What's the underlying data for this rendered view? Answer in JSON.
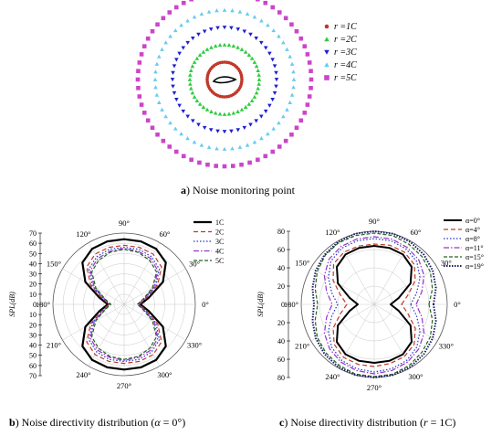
{
  "figure": {
    "caption_a": {
      "letter": "a",
      "rest": ") Noise monitoring point"
    },
    "caption_b": {
      "letter": "b",
      "rest": ") Noise directivity distribution (",
      "sym": "α",
      "tail": " = 0°)"
    },
    "caption_c": {
      "letter": "c",
      "rest": ") Noise directivity distribution (",
      "sym": "r",
      "tail": " = 1C)"
    }
  },
  "chart_data": [
    {
      "id": "a",
      "type": "scatter",
      "title": "",
      "description_markers": "concentric rings of monitoring points around an airfoil",
      "series": [
        {
          "name": "r =1C",
          "r": 1,
          "color": "#c0392b",
          "marker": "circle"
        },
        {
          "name": "r =2C",
          "r": 2,
          "color": "#2ecc40",
          "marker": "triangle-up"
        },
        {
          "name": "r =3C",
          "r": 3,
          "color": "#1f1fd0",
          "marker": "triangle-down"
        },
        {
          "name": "r =4C",
          "r": 4,
          "color": "#66ccee",
          "marker": "triangle-up"
        },
        {
          "name": "r =5C",
          "r": 5,
          "color": "#cc44cc",
          "marker": "square"
        }
      ],
      "legend": {
        "position": "right"
      }
    },
    {
      "id": "b",
      "type": "line",
      "subtype": "polar",
      "ylabel": "SPL(dB)",
      "rlim": [
        0,
        70
      ],
      "radial_ticks": [
        0,
        10,
        20,
        30,
        40,
        50,
        60,
        70
      ],
      "angle_ticks": [
        "0°",
        "30°",
        "60°",
        "90°",
        "120°",
        "150°",
        "180°",
        "210°",
        "240°",
        "270°",
        "300°",
        "330°"
      ],
      "angles_deg": [
        0,
        15,
        30,
        45,
        60,
        75,
        90,
        105,
        120,
        135,
        150,
        165,
        180,
        195,
        210,
        225,
        240,
        255,
        270,
        285,
        300,
        315,
        330,
        345
      ],
      "series": [
        {
          "name": "1C",
          "color": "#000000",
          "dash": "",
          "width": 2.2,
          "values": [
            16,
            25,
            44,
            58,
            63,
            64,
            64,
            64,
            63,
            58,
            44,
            25,
            16,
            25,
            44,
            58,
            63,
            64,
            64,
            64,
            63,
            58,
            44,
            25
          ]
        },
        {
          "name": "2C",
          "color": "#c0392b",
          "dash": "5,3",
          "width": 1.2,
          "values": [
            15,
            22,
            38,
            52,
            57,
            58,
            58,
            58,
            57,
            52,
            38,
            22,
            15,
            22,
            38,
            52,
            57,
            58,
            58,
            58,
            57,
            52,
            38,
            22
          ]
        },
        {
          "name": "3C",
          "color": "#2233cc",
          "dash": "1.5,2",
          "width": 1.2,
          "values": [
            14,
            21,
            36,
            49,
            54,
            56,
            56,
            56,
            54,
            49,
            36,
            21,
            14,
            21,
            36,
            49,
            54,
            56,
            56,
            56,
            54,
            49,
            36,
            21
          ]
        },
        {
          "name": "4C",
          "color": "#9933cc",
          "dash": "6,2,1.5,2",
          "width": 1.2,
          "values": [
            14,
            20,
            34,
            47,
            52,
            54,
            55,
            54,
            52,
            47,
            34,
            20,
            14,
            20,
            34,
            47,
            52,
            54,
            55,
            54,
            52,
            47,
            34,
            20
          ]
        },
        {
          "name": "5C",
          "color": "#226622",
          "dash": "4,2",
          "width": 1.2,
          "values": [
            13,
            19,
            32,
            45,
            50,
            53,
            54,
            53,
            50,
            45,
            32,
            19,
            13,
            19,
            32,
            45,
            50,
            53,
            54,
            53,
            50,
            45,
            32,
            19
          ]
        }
      ],
      "legend": {
        "position": "top-right"
      }
    },
    {
      "id": "c",
      "type": "line",
      "subtype": "polar",
      "ylabel": "SPL(dB)",
      "rlim": [
        0,
        80
      ],
      "radial_ticks": [
        0,
        20,
        40,
        60,
        80
      ],
      "angle_ticks": [
        "0°",
        "30°",
        "60°",
        "90°",
        "120°",
        "150°",
        "180°",
        "210°",
        "240°",
        "270°",
        "300°",
        "330°"
      ],
      "angles_deg": [
        0,
        15,
        30,
        45,
        60,
        75,
        90,
        105,
        120,
        135,
        150,
        165,
        180,
        195,
        210,
        225,
        240,
        255,
        270,
        285,
        300,
        315,
        330,
        345
      ],
      "series": [
        {
          "name": "α=0°",
          "color": "#000000",
          "dash": "",
          "width": 2.0,
          "values": [
            18,
            28,
            46,
            58,
            63,
            64,
            64,
            64,
            63,
            58,
            46,
            28,
            18,
            28,
            46,
            58,
            63,
            64,
            64,
            64,
            63,
            58,
            46,
            28
          ]
        },
        {
          "name": "α=4°",
          "color": "#c0392b",
          "dash": "5,3",
          "width": 1.2,
          "values": [
            30,
            38,
            52,
            62,
            66,
            67,
            66,
            66,
            66,
            63,
            52,
            38,
            30,
            38,
            52,
            62,
            67,
            68,
            68,
            67,
            66,
            62,
            52,
            38
          ]
        },
        {
          "name": "α=8°",
          "color": "#2233cc",
          "dash": "1.5,2",
          "width": 1.2,
          "values": [
            40,
            48,
            58,
            66,
            70,
            72,
            72,
            72,
            71,
            67,
            58,
            48,
            40,
            48,
            58,
            66,
            71,
            73,
            74,
            73,
            71,
            66,
            58,
            48
          ]
        },
        {
          "name": "α=11°",
          "color": "#9933cc",
          "dash": "6,2,1.5,2",
          "width": 1.2,
          "values": [
            46,
            54,
            63,
            69,
            72,
            74,
            74,
            74,
            73,
            70,
            63,
            54,
            46,
            54,
            63,
            69,
            73,
            75,
            76,
            75,
            73,
            69,
            63,
            54
          ]
        },
        {
          "name": "α=15°",
          "color": "#226622",
          "dash": "4,2",
          "width": 1.2,
          "values": [
            60,
            66,
            71,
            74,
            76,
            78,
            78,
            78,
            78,
            76,
            72,
            67,
            62,
            67,
            72,
            75,
            77,
            79,
            79,
            79,
            77,
            74,
            71,
            66
          ]
        },
        {
          "name": "α=19°",
          "color": "#1a1a66",
          "dash": "1.5,1.5",
          "width": 2.0,
          "values": [
            65,
            70,
            74,
            77,
            79,
            80,
            80,
            80,
            79,
            77,
            74,
            70,
            66,
            70,
            74,
            77,
            79,
            80,
            80,
            80,
            79,
            77,
            74,
            70
          ]
        }
      ],
      "legend": {
        "position": "top-right"
      }
    }
  ]
}
